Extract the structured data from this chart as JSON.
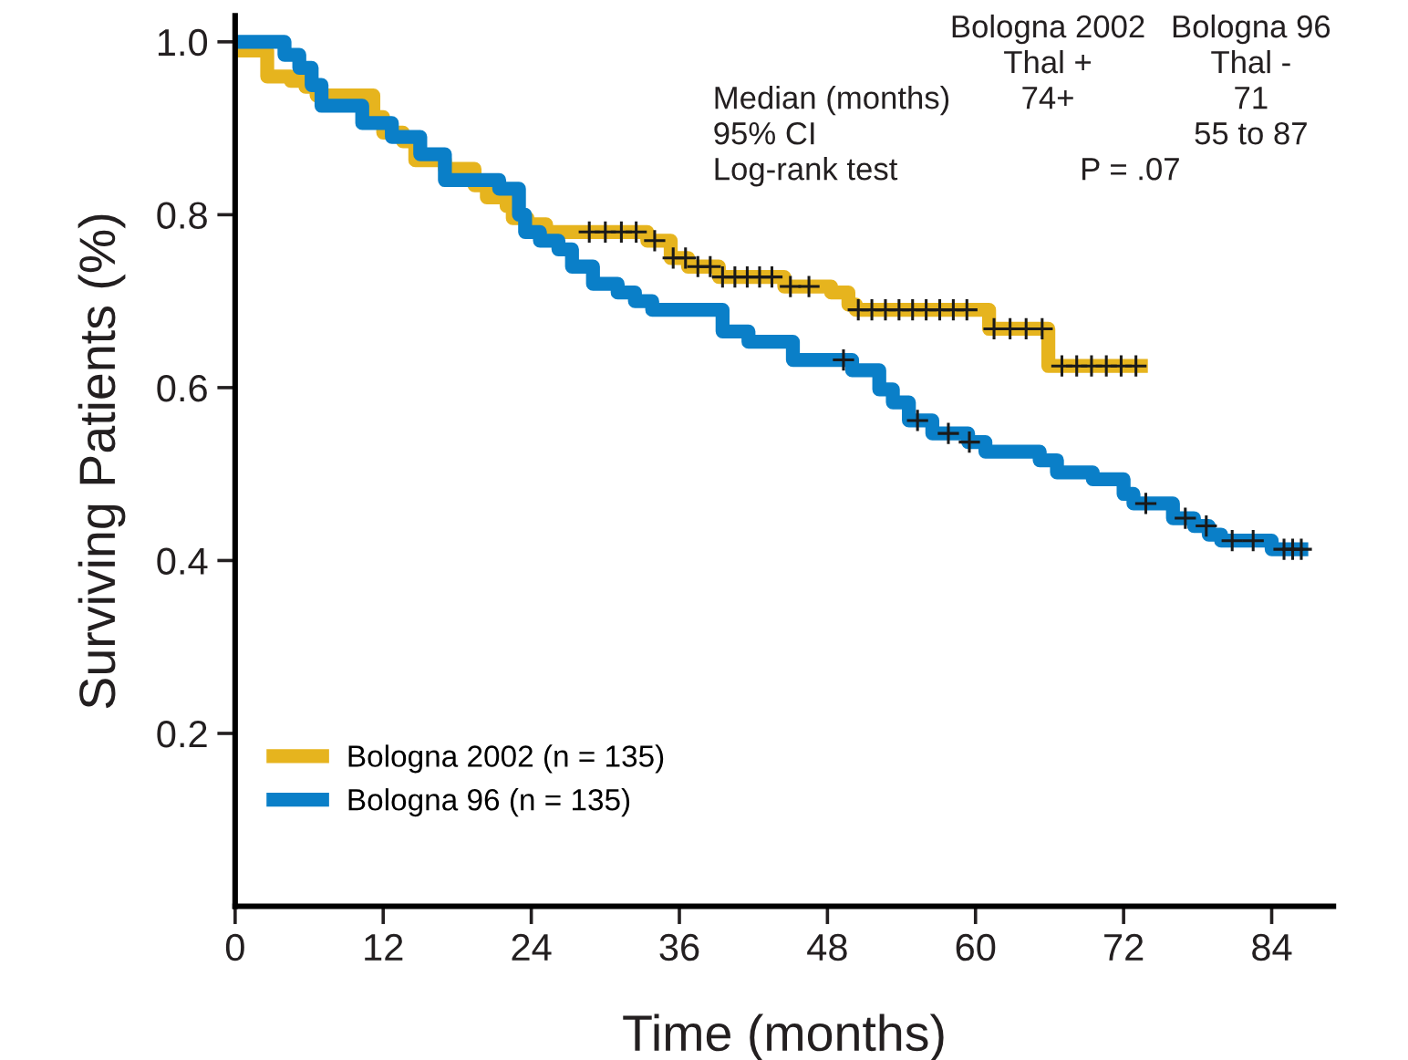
{
  "chart_data": {
    "type": "step",
    "xlabel": "Time (months)",
    "ylabel": "Surviving Patients (%)",
    "xlim": [
      0,
      89
    ],
    "ylim": [
      0,
      1.03
    ],
    "xticks": [
      0,
      12,
      24,
      36,
      48,
      60,
      72,
      84
    ],
    "yticks": [
      {
        "value": 0.2,
        "label": "0.2"
      },
      {
        "value": 0.4,
        "label": "0.4"
      },
      {
        "value": 0.6,
        "label": "0.6"
      },
      {
        "value": 0.8,
        "label": "0.8"
      },
      {
        "value": 1,
        "label": "1.0"
      }
    ],
    "legend": "bottom left",
    "grid": false,
    "line_style": "solid",
    "series": [
      {
        "name": "Bologna 2002 (n = 135)",
        "color": "#e6b41e",
        "x": [
          0,
          2.6,
          4.5,
          5.7,
          6.6,
          11.2,
          12,
          13.6,
          14.6,
          17,
          19.4,
          20.4,
          22,
          22.5,
          23.7,
          25.2,
          33.4,
          35.3,
          36.7,
          39.2,
          44.5,
          48.3,
          49.7,
          50.3,
          61.1,
          65.9,
          73.4
        ],
        "values": [
          0.99,
          0.96,
          0.955,
          0.948,
          0.938,
          0.913,
          0.895,
          0.885,
          0.863,
          0.853,
          0.834,
          0.82,
          0.81,
          0.796,
          0.789,
          0.78,
          0.77,
          0.75,
          0.74,
          0.728,
          0.717,
          0.71,
          0.696,
          0.69,
          0.668,
          0.625,
          0.625
        ]
      },
      {
        "name": "Bologna 96 (n = 135)",
        "color": "#0a7fc8",
        "x": [
          0,
          4,
          5.2,
          6.2,
          7,
          10.3,
          12.7,
          15,
          17,
          21.4,
          23,
          23.5,
          24.7,
          26.2,
          27.3,
          29,
          31,
          32.4,
          33.8,
          39.5,
          41.6,
          45.2,
          50,
          52.2,
          53.3,
          54.6,
          56.5,
          59.4,
          60.8,
          65.2,
          66.6,
          69.5,
          72,
          72.8,
          76,
          77.7,
          78.9,
          79.9,
          84,
          86.4
        ],
        "values": [
          1.0,
          0.985,
          0.97,
          0.95,
          0.926,
          0.906,
          0.89,
          0.87,
          0.84,
          0.83,
          0.8,
          0.78,
          0.77,
          0.76,
          0.74,
          0.72,
          0.71,
          0.7,
          0.69,
          0.665,
          0.653,
          0.632,
          0.62,
          0.598,
          0.583,
          0.562,
          0.547,
          0.537,
          0.526,
          0.516,
          0.502,
          0.494,
          0.477,
          0.466,
          0.449,
          0.44,
          0.43,
          0.423,
          0.413,
          0.413
        ]
      },
      {
        "type": "scatter",
        "marker": "cross",
        "color": "#1a1a1a",
        "x": [
          28.7,
          30,
          31.3,
          32.5,
          34,
          35.5,
          36.5,
          37.5,
          38.5,
          39.5,
          40.5,
          41.5,
          42.5,
          43.5,
          45,
          46.5,
          50.5,
          51.6,
          52.7,
          53.8,
          54.9,
          56,
          57.1,
          58.2,
          59.3,
          61.5,
          62.8,
          64.1,
          65.4,
          67,
          68.2,
          69.4,
          70.6,
          71.8,
          73
        ],
        "values": [
          0.78,
          0.78,
          0.78,
          0.78,
          0.77,
          0.75,
          0.75,
          0.74,
          0.74,
          0.728,
          0.728,
          0.728,
          0.728,
          0.728,
          0.717,
          0.717,
          0.69,
          0.69,
          0.69,
          0.69,
          0.69,
          0.69,
          0.69,
          0.69,
          0.69,
          0.668,
          0.668,
          0.668,
          0.668,
          0.625,
          0.625,
          0.625,
          0.625,
          0.625,
          0.625
        ]
      },
      {
        "type": "scatter",
        "marker": "cross",
        "color": "#1a1a1a",
        "x": [
          49.3,
          55.3,
          57.8,
          59.5,
          73.8,
          77,
          78.7,
          80.8,
          82.5,
          85,
          85.7,
          86.4
        ],
        "values": [
          0.632,
          0.562,
          0.547,
          0.537,
          0.466,
          0.449,
          0.44,
          0.423,
          0.423,
          0.413,
          0.413,
          0.413
        ]
      }
    ],
    "annotations": [
      "Bologna 2002",
      "Bologna 96",
      "Thal +",
      "Thal -",
      "Median (months)",
      "74+",
      "71",
      "95% CI",
      "55 to 87",
      "Log-rank test",
      "P = .07"
    ]
  }
}
